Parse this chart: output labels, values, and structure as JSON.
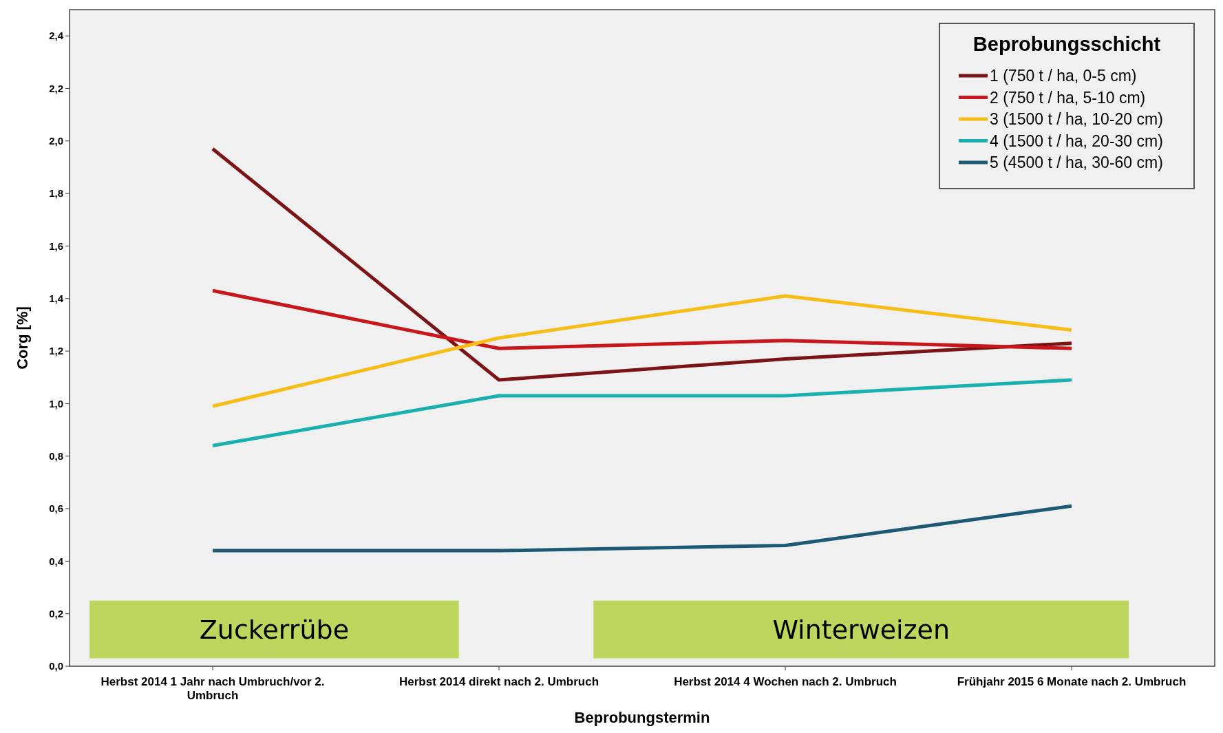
{
  "chart_data": {
    "type": "line",
    "xlabel": "Beprobungstermin",
    "ylabel": "Corg [%]",
    "legend_title": "Beprobungsschicht",
    "legend": "top right",
    "grid": false,
    "marker": "none",
    "line_style": "solid",
    "categories": [
      "Herbst 2014 1 Jahr nach Umbruch/vor 2. Umbruch",
      "Herbst 2014 direkt nach 2. Umbruch",
      "Herbst 2014 4 Wochen nach 2. Umbruch",
      "Frühjahr 2015 6 Monate nach 2. Umbruch"
    ],
    "ylim": [
      0,
      2.5
    ],
    "yticks": [
      {
        "value": 0,
        "label": "0,0"
      },
      {
        "value": 0.2,
        "label": "0,2"
      },
      {
        "value": 0.4,
        "label": "0,4"
      },
      {
        "value": 0.6,
        "label": "0,6"
      },
      {
        "value": 0.8,
        "label": "0,8"
      },
      {
        "value": 1.0,
        "label": "1,0"
      },
      {
        "value": 1.2,
        "label": "1,2"
      },
      {
        "value": 1.4,
        "label": "1,4"
      },
      {
        "value": 1.6,
        "label": "1,6"
      },
      {
        "value": 1.8,
        "label": "1,8"
      },
      {
        "value": 2.0,
        "label": "2,0"
      },
      {
        "value": 2.2,
        "label": "2,2"
      },
      {
        "value": 2.4,
        "label": "2,4"
      }
    ],
    "series": [
      {
        "name": "1 (750 t / ha, 0-5 cm)",
        "color": "#7b1416",
        "values": [
          1.97,
          1.09,
          1.17,
          1.23
        ]
      },
      {
        "name": "2 (750 t / ha, 5-10 cm)",
        "color": "#c8161d",
        "values": [
          1.43,
          1.21,
          1.24,
          1.21
        ]
      },
      {
        "name": "3 (1500 t / ha, 10-20 cm)",
        "color": "#f5bd16",
        "values": [
          0.99,
          1.25,
          1.41,
          1.28
        ]
      },
      {
        "name": "4 (1500 t / ha, 20-30 cm)",
        "color": "#1ab0b0",
        "values": [
          0.84,
          1.03,
          1.03,
          1.09
        ]
      },
      {
        "name": "5 (4500 t / ha, 30-60 cm)",
        "color": "#1c5a73",
        "values": [
          0.44,
          0.44,
          0.46,
          0.61
        ]
      }
    ],
    "annotations": [
      "Zuckerrübe",
      "Winterweizen"
    ]
  }
}
